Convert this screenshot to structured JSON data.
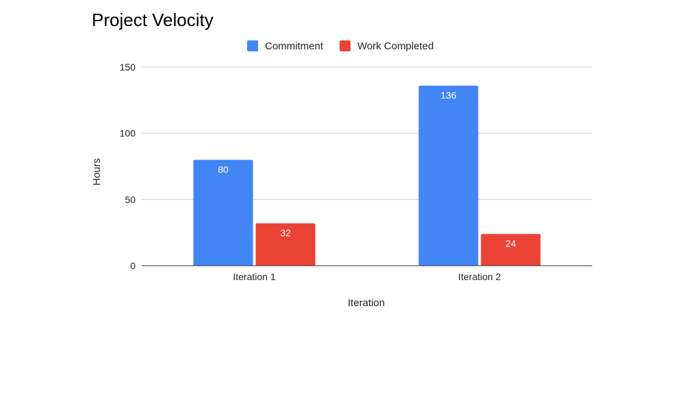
{
  "chart_data": {
    "type": "bar",
    "title": "Project Velocity",
    "xlabel": "Iteration",
    "ylabel": "Hours",
    "categories": [
      "Iteration 1",
      "Iteration 2"
    ],
    "series": [
      {
        "name": "Commitment",
        "values": [
          80,
          136
        ],
        "color": "#4285f4"
      },
      {
        "name": "Work Completed",
        "values": [
          32,
          24
        ],
        "color": "#ea4335"
      }
    ],
    "ylim": [
      0,
      150
    ],
    "yticks": [
      0,
      50,
      100,
      150
    ],
    "grid": true,
    "legend": "top-center",
    "data_labels": true
  }
}
